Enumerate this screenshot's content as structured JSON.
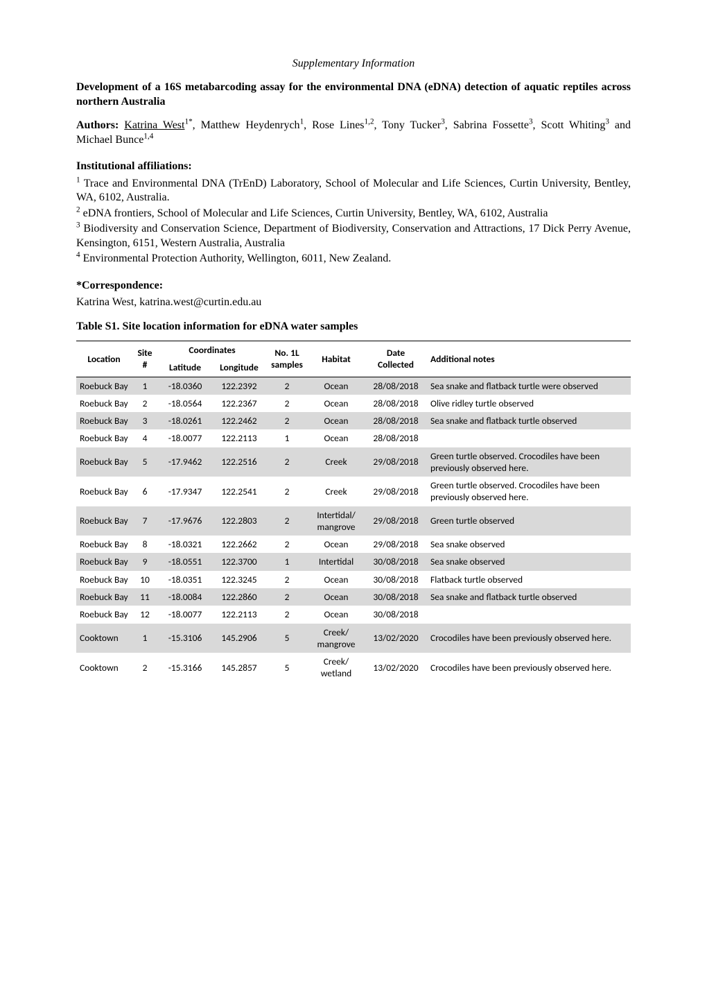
{
  "header": {
    "supp_info": "Supplementary Information"
  },
  "title": "Development of a 16S metabarcoding assay for the environmental DNA (eDNA) detection of aquatic reptiles across northern Australia",
  "authors": {
    "label": "Authors:",
    "line_prefix": " ",
    "name1": "Katrina West",
    "sup1": "1*",
    "sep1": ", Matthew Heydenrych",
    "sup2": "1",
    "sep2": ", Rose Lines",
    "sup3": "1,2",
    "sep3": ", Tony Tucker",
    "sup4": "3",
    "sep4": ", Sabrina Fossette",
    "sup5": "3",
    "sep5": ", Scott Whiting",
    "sup6": "3",
    "sep6": " and Michael Bunce",
    "sup7": "1,4"
  },
  "affiliations": {
    "heading": "Institutional affiliations:",
    "a1_sup": "1",
    "a1": " Trace and Environmental DNA (TrEnD) Laboratory, School of Molecular and Life Sciences, Curtin University, Bentley, WA, 6102, Australia.",
    "a2_sup": "2",
    "a2": " eDNA frontiers, School of Molecular and Life Sciences, Curtin University, Bentley, WA, 6102, Australia",
    "a3_sup": "3",
    "a3": " Biodiversity and Conservation Science, Department of Biodiversity, Conservation and Attractions, 17 Dick Perry Avenue, Kensington, 6151, Western Australia, Australia",
    "a4_sup": "4",
    "a4": " Environmental Protection Authority, Wellington, 6011, New Zealand."
  },
  "correspondence": {
    "heading": "*Correspondence:",
    "text": "Katrina West, katrina.west@curtin.edu.au"
  },
  "table": {
    "caption": "Table S1. Site location information for eDNA water samples",
    "columns": {
      "location": "Location",
      "site": "Site\n#",
      "coordinates": "Coordinates",
      "latitude": "Latitude",
      "longitude": "Longitude",
      "samples": "No. 1L\nsamples",
      "habitat": "Habitat",
      "date": "Date\nCollected",
      "notes": "Additional notes"
    },
    "rows": [
      {
        "shade": true,
        "location": "Roebuck Bay",
        "site": "1",
        "lat": "-18.0360",
        "lon": "122.2392",
        "samples": "2",
        "habitat": "Ocean",
        "date": "28/08/2018",
        "notes": "Sea snake and flatback turtle were observed"
      },
      {
        "shade": false,
        "location": "Roebuck Bay",
        "site": "2",
        "lat": "-18.0564",
        "lon": "122.2367",
        "samples": "2",
        "habitat": "Ocean",
        "date": "28/08/2018",
        "notes": "Olive ridley turtle observed"
      },
      {
        "shade": true,
        "location": "Roebuck Bay",
        "site": "3",
        "lat": "-18.0261",
        "lon": "122.2462",
        "samples": "2",
        "habitat": "Ocean",
        "date": "28/08/2018",
        "notes": "Sea snake and flatback turtle observed"
      },
      {
        "shade": false,
        "location": "Roebuck Bay",
        "site": "4",
        "lat": "-18.0077",
        "lon": "122.2113",
        "samples": "1",
        "habitat": "Ocean",
        "date": "28/08/2018",
        "notes": ""
      },
      {
        "shade": true,
        "location": "Roebuck Bay",
        "site": "5",
        "lat": "-17.9462",
        "lon": "122.2516",
        "samples": "2",
        "habitat": "Creek",
        "date": "29/08/2018",
        "notes": "Green turtle observed. Crocodiles have been previously observed here."
      },
      {
        "shade": false,
        "location": "Roebuck Bay",
        "site": "6",
        "lat": "-17.9347",
        "lon": "122.2541",
        "samples": "2",
        "habitat": "Creek",
        "date": "29/08/2018",
        "notes": "Green turtle observed. Crocodiles have been previously observed here."
      },
      {
        "shade": true,
        "location": "Roebuck Bay",
        "site": "7",
        "lat": "-17.9676",
        "lon": "122.2803",
        "samples": "2",
        "habitat": "Intertidal/ mangrove",
        "date": "29/08/2018",
        "notes": "Green turtle observed"
      },
      {
        "shade": false,
        "location": "Roebuck Bay",
        "site": "8",
        "lat": "-18.0321",
        "lon": "122.2662",
        "samples": "2",
        "habitat": "Ocean",
        "date": "29/08/2018",
        "notes": "Sea snake observed"
      },
      {
        "shade": true,
        "location": "Roebuck Bay",
        "site": "9",
        "lat": "-18.0551",
        "lon": "122.3700",
        "samples": "1",
        "habitat": "Intertidal",
        "date": "30/08/2018",
        "notes": "Sea snake observed"
      },
      {
        "shade": false,
        "location": "Roebuck Bay",
        "site": "10",
        "lat": "-18.0351",
        "lon": "122.3245",
        "samples": "2",
        "habitat": "Ocean",
        "date": "30/08/2018",
        "notes": "Flatback turtle observed"
      },
      {
        "shade": true,
        "location": "Roebuck Bay",
        "site": "11",
        "lat": "-18.0084",
        "lon": "122.2860",
        "samples": "2",
        "habitat": "Ocean",
        "date": "30/08/2018",
        "notes": "Sea snake and flatback turtle observed"
      },
      {
        "shade": false,
        "location": "Roebuck Bay",
        "site": "12",
        "lat": "-18.0077",
        "lon": "122.2113",
        "samples": "2",
        "habitat": "Ocean",
        "date": "30/08/2018",
        "notes": ""
      },
      {
        "shade": true,
        "location": "Cooktown",
        "site": "1",
        "lat": "-15.3106",
        "lon": "145.2906",
        "samples": "5",
        "habitat": "Creek/ mangrove",
        "date": "13/02/2020",
        "notes": "Crocodiles have been previously observed here."
      },
      {
        "shade": false,
        "location": "Cooktown",
        "site": "2",
        "lat": "-15.3166",
        "lon": "145.2857",
        "samples": "5",
        "habitat": "Creek/ wetland",
        "date": "13/02/2020",
        "notes": "Crocodiles have been previously observed here."
      }
    ],
    "style": {
      "type": "table",
      "header_border_color": "#000000",
      "shade_color": "#d9d9d9",
      "font_family": "Calibri",
      "font_size_pt": 10,
      "text_color": "#000000",
      "background_color": "#ffffff"
    }
  }
}
